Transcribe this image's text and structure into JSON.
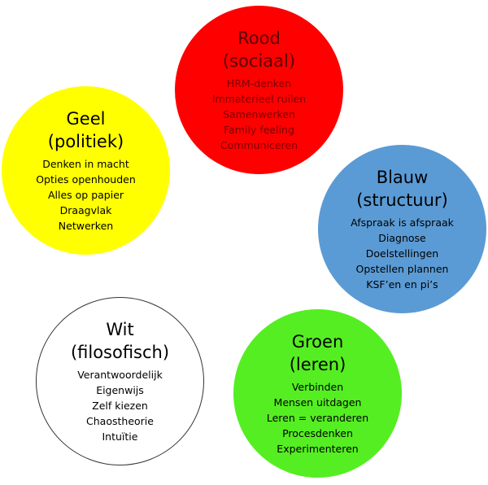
{
  "circles": {
    "rood": {
      "title": "Rood",
      "subtitle": "(sociaal)",
      "color": "#ff0000",
      "items": [
        "HRM-denken",
        "Immaterieel ruilen",
        "Samenwerken",
        "Family feeling",
        "Communiceren"
      ]
    },
    "geel": {
      "title": "Geel",
      "subtitle": "(politiek)",
      "color": "#ffff00",
      "items": [
        "Denken in macht",
        "Opties openhouden",
        "Alles op papier",
        "Draagvlak",
        "Netwerken"
      ]
    },
    "blauw": {
      "title": "Blauw",
      "subtitle": "(structuur)",
      "color": "#5b9bd5",
      "items": [
        "Afspraak is afspraak",
        "Diagnose",
        "Doelstellingen",
        "Opstellen plannen",
        "KSF’en en pi’s"
      ]
    },
    "wit": {
      "title": "Wit",
      "subtitle": "(filosofisch)",
      "color": "#ffffff",
      "items": [
        "Verantwoordelijk",
        "Eigenwijs",
        "Zelf kiezen",
        "Chaostheorie",
        "Intuïtie"
      ]
    },
    "groen": {
      "title": "Groen",
      "subtitle": "(leren)",
      "color": "#55ee22",
      "items": [
        "Verbinden",
        "Mensen uitdagen",
        "Leren = veranderen",
        "Procesdenken",
        "Experimenteren"
      ]
    }
  }
}
